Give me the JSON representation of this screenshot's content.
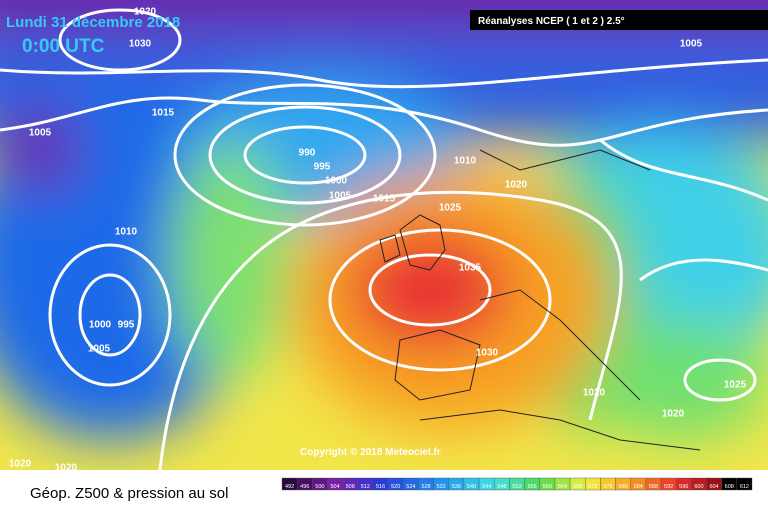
{
  "header": {
    "date": "Lundi 31 décembre 2018",
    "time": "0:00 UTC",
    "source": "Réanalyses NCEP ( 1 et 2 ) 2.5°",
    "copyright": "Copyright © 2018 Meteociel.fr"
  },
  "isobar_labels": [
    "1020",
    "1030",
    "1015",
    "1005",
    "990",
    "995",
    "1000",
    "1005",
    "1015",
    "1010",
    "1020",
    "1025",
    "1010",
    "1035",
    "1000",
    "995",
    "1005",
    "1030",
    "1020",
    "1020",
    "1025",
    "1005",
    "1020",
    "1020"
  ],
  "legend": {
    "title": "Géop. Z500 & pression au sol",
    "levels": [
      492,
      496,
      500,
      504,
      508,
      512,
      516,
      520,
      524,
      528,
      532,
      536,
      540,
      544,
      548,
      552,
      556,
      560,
      564,
      568,
      572,
      576,
      580,
      584,
      588,
      592,
      596,
      600,
      604,
      608,
      612
    ]
  }
}
